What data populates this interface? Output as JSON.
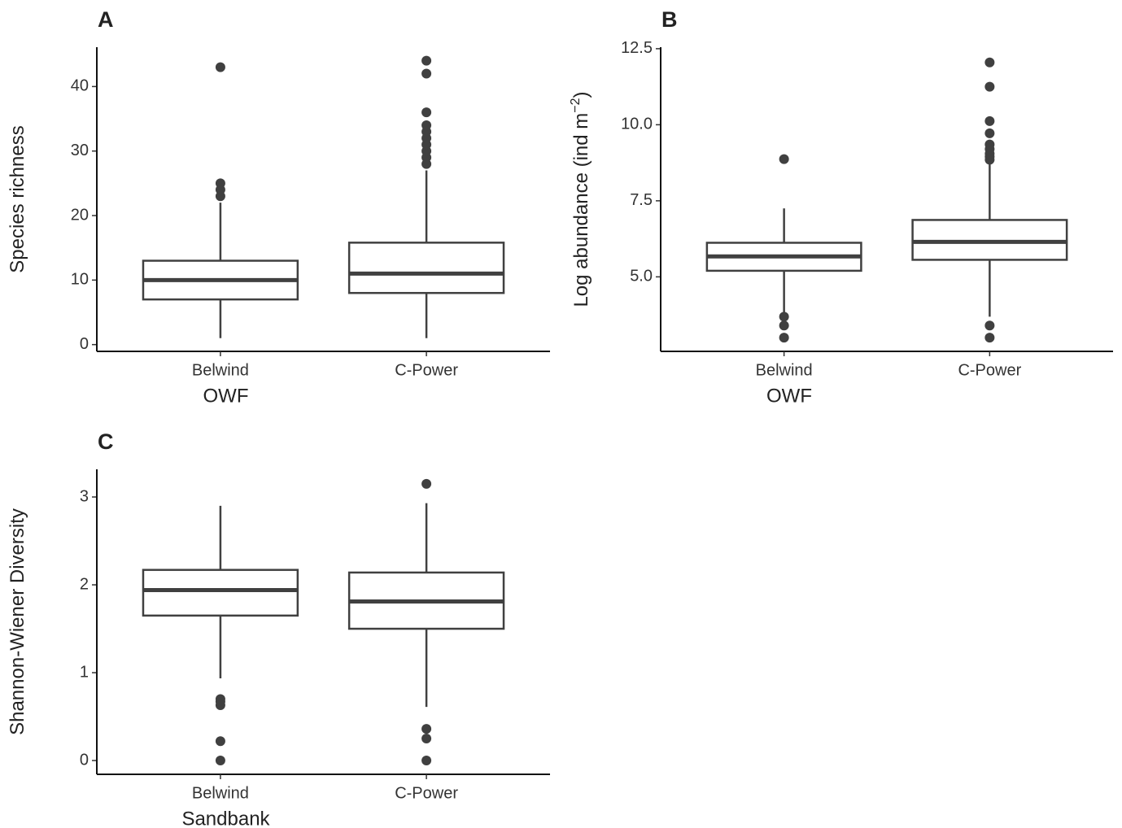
{
  "chart_data": [
    {
      "type": "box",
      "title": "A",
      "xlabel": "OWF",
      "ylabel": [
        "Species richness"
      ],
      "categories": [
        "Belwind",
        "C-Power"
      ],
      "boxes": [
        {
          "min": 1,
          "q1": 7,
          "median": 10,
          "q3": 13,
          "max": 22,
          "outliers": [
            23,
            24,
            25,
            43
          ]
        },
        {
          "min": 1,
          "q1": 8,
          "median": 11,
          "q3": 15.8,
          "max": 27,
          "outliers": [
            28,
            29,
            30,
            31,
            32,
            33,
            34,
            36,
            42,
            44
          ]
        }
      ],
      "ylim": [
        -1.05,
        46.1
      ],
      "yticks": [
        0,
        10,
        20,
        30,
        40
      ],
      "color": "#404040"
    },
    {
      "type": "box",
      "title": "B",
      "xlabel": "OWF",
      "ylabel": [
        "Log abundance (ind m",
        "−2",
        ")"
      ],
      "categories": [
        "Belwind",
        "C-Power"
      ],
      "boxes": [
        {
          "min": 3.8,
          "q1": 5.2,
          "median": 5.67,
          "q3": 6.12,
          "max": 7.25,
          "outliers": [
            3.69,
            3.4,
            3.0,
            8.87
          ]
        },
        {
          "min": 3.69,
          "q1": 5.56,
          "median": 6.15,
          "q3": 6.87,
          "max": 8.7,
          "outliers": [
            3.4,
            3.0,
            8.85,
            8.95,
            9.05,
            9.2,
            9.35,
            9.72,
            10.12,
            11.25,
            12.05
          ]
        }
      ],
      "ylim": [
        2.55,
        12.55
      ],
      "yticks": [
        {
          "value": 5,
          "label": "5.0"
        },
        7.5,
        {
          "value": 10,
          "label": "10.0"
        },
        12.5
      ],
      "color": "#404040"
    },
    {
      "type": "box",
      "title": "C",
      "xlabel": "Sandbank",
      "ylabel": [
        "Shannon-Wiener Diversity"
      ],
      "categories": [
        "Belwind",
        "C-Power"
      ],
      "boxes": [
        {
          "min": 0.935,
          "q1": 1.65,
          "median": 1.94,
          "q3": 2.17,
          "max": 2.9,
          "outliers": [
            0.7,
            0.67,
            0.63,
            0.22,
            0
          ]
        },
        {
          "min": 0.61,
          "q1": 1.5,
          "median": 1.81,
          "q3": 2.14,
          "max": 2.93,
          "outliers": [
            3.15,
            0.36,
            0.25,
            0
          ]
        }
      ],
      "ylim": [
        -0.157,
        3.315
      ],
      "yticks": [
        0,
        1,
        2,
        3
      ],
      "color": "#404040"
    }
  ]
}
